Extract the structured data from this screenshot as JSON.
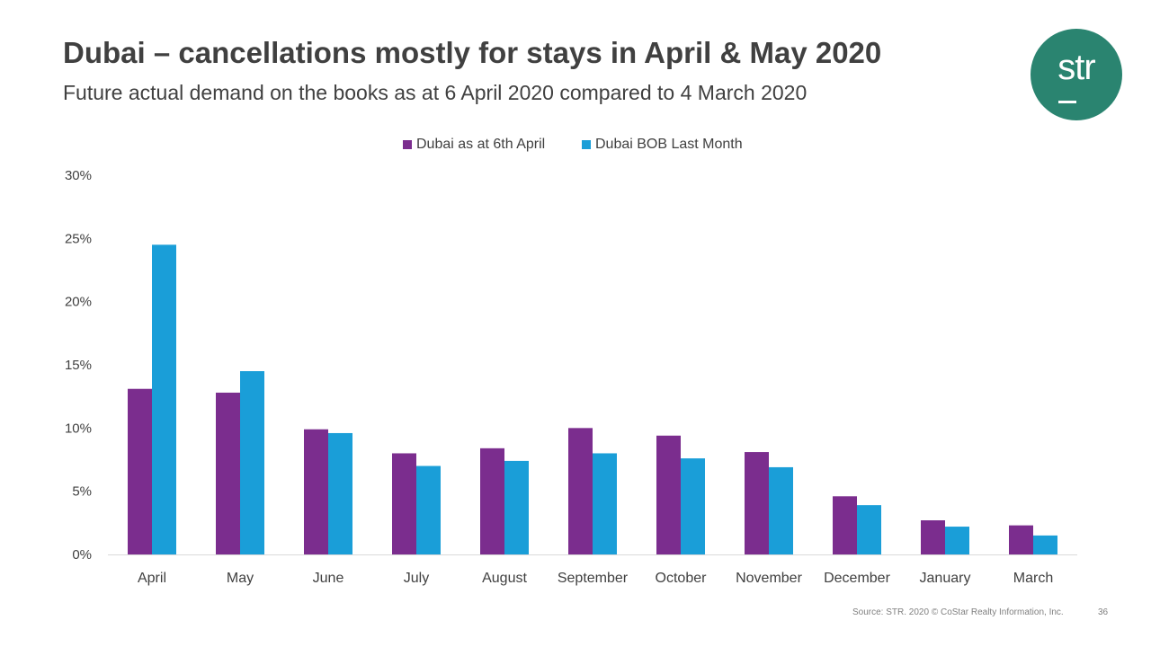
{
  "slide": {
    "title": "Dubai – cancellations mostly for stays in April & May 2020",
    "subtitle": "Future actual demand on the books as at 6 April 2020 compared to 4 March 2020",
    "logo_text": "str",
    "source": "Source: STR. 2020 © CoStar Realty Information, Inc.",
    "page_number": "36"
  },
  "colors": {
    "series1": "#7b2d8e",
    "series2": "#1a9ed8",
    "text": "#404040",
    "axis": "#d9d9d9",
    "logo_bg": "#2a8470"
  },
  "chart_data": {
    "type": "bar",
    "title": "",
    "xlabel": "",
    "ylabel": "",
    "ylim": [
      0,
      30
    ],
    "yticks": [
      0,
      5,
      10,
      15,
      20,
      25,
      30
    ],
    "ytick_labels": [
      "0%",
      "5%",
      "10%",
      "15%",
      "20%",
      "25%",
      "30%"
    ],
    "grid": false,
    "legend_position": "top-center",
    "categories": [
      "April",
      "May",
      "June",
      "July",
      "August",
      "September",
      "October",
      "November",
      "December",
      "January",
      "March"
    ],
    "series": [
      {
        "name": "Dubai as at 6th April",
        "values": [
          13.1,
          12.8,
          9.9,
          8.0,
          8.4,
          10.0,
          9.4,
          8.1,
          4.6,
          2.7,
          2.3
        ]
      },
      {
        "name": "Dubai BOB Last Month",
        "values": [
          24.5,
          14.5,
          9.6,
          7.0,
          7.4,
          8.0,
          7.6,
          6.9,
          3.9,
          2.2,
          1.5
        ]
      }
    ]
  }
}
